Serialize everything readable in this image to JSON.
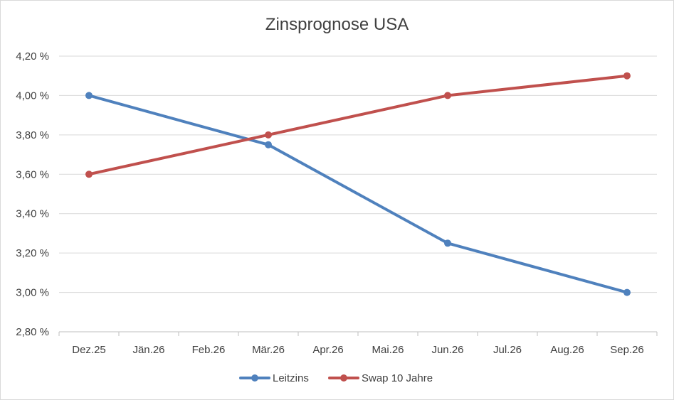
{
  "chart_data": {
    "type": "line",
    "title": "Zinsprognose USA",
    "xlabel": "",
    "ylabel": "",
    "categories": [
      "Dez.25",
      "Jän.26",
      "Feb.26",
      "Mär.26",
      "Apr.26",
      "Mai.26",
      "Jun.26",
      "Jul.26",
      "Aug.26",
      "Sep.26"
    ],
    "y_ticks": [
      "2,80 %",
      "3,00 %",
      "3,20 %",
      "3,40 %",
      "3,60 %",
      "3,80 %",
      "4,00 %",
      "4,20 %"
    ],
    "ylim": [
      2.8,
      4.2
    ],
    "grid": true,
    "legend_position": "bottom",
    "series": [
      {
        "name": "Leitzins",
        "color": "#4f81bd",
        "values": [
          4.0,
          null,
          null,
          3.75,
          null,
          null,
          3.25,
          null,
          null,
          3.0
        ]
      },
      {
        "name": "Swap 10 Jahre",
        "color": "#c0504d",
        "values": [
          3.6,
          null,
          null,
          3.8,
          null,
          null,
          4.0,
          null,
          null,
          4.1
        ]
      }
    ]
  }
}
